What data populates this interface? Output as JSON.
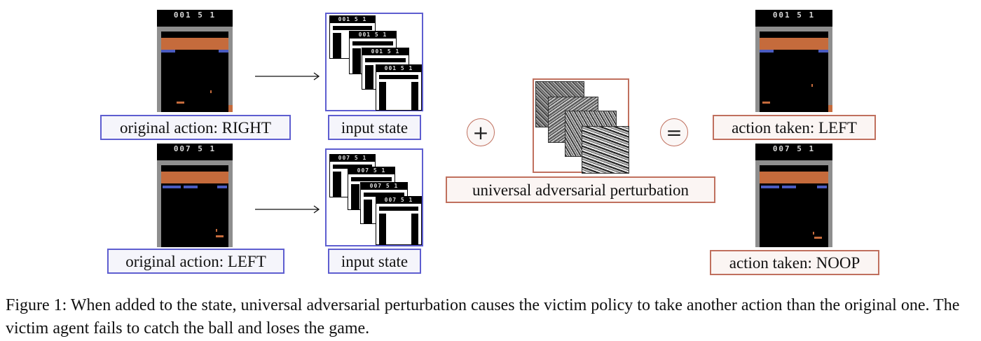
{
  "rows": [
    {
      "score": "001 5 1",
      "original_action": "original action: RIGHT",
      "input_label": "input state",
      "taken_score": "001 5 1",
      "action_taken": "action taken: LEFT"
    },
    {
      "score": "007 5 1",
      "original_action": "original action: LEFT",
      "input_label": "input state",
      "taken_score": "007 5 1",
      "action_taken": "action taken: NOOP"
    }
  ],
  "stack_scores": [
    "001 5 1",
    "001 5 1",
    "001 5 1",
    "001 5 1",
    "007 5 1",
    "007 5 1",
    "007 5 1",
    "007 5 1"
  ],
  "plus_symbol": "+",
  "equals_symbol": "=",
  "perturbation_label": "universal adversarial perturbation",
  "caption": "Figure 1: When added to the state, universal adversarial perturbation causes the victim policy to take another action than the original one. The victim agent fails to catch the ball and loses the game.",
  "colors": {
    "blue_border": "#5e5ed0",
    "red_border": "#c0705e",
    "brick": "#c56b3c",
    "wall": "#8e8e8e"
  }
}
